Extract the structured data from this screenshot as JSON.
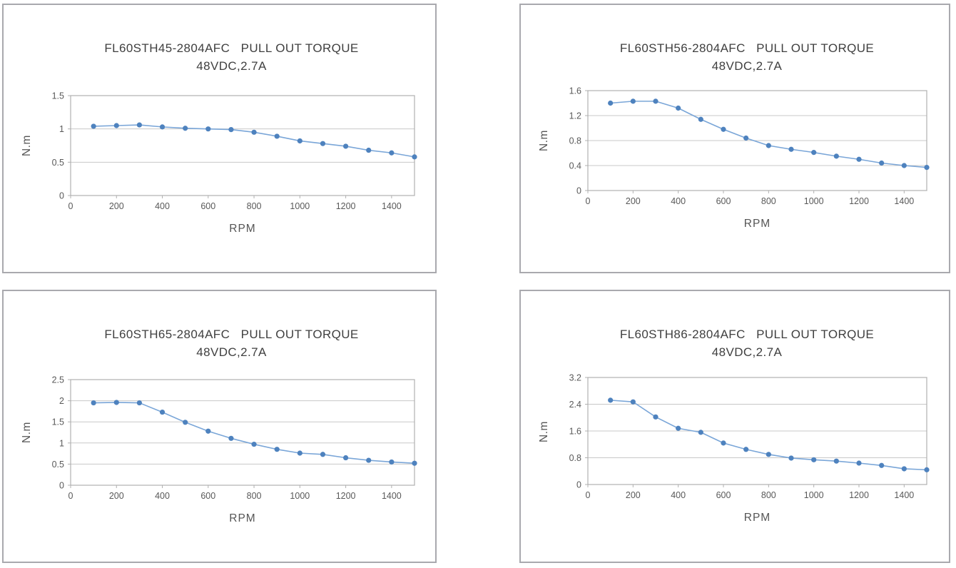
{
  "colors": {
    "line": "#7aa6d8",
    "marker": "#4e82be",
    "grid": "#c8c8c8",
    "axis": "#b0b0b0",
    "panel_border": "#a9a9ae",
    "title_text": "#3f3f3f",
    "tick_text": "#595959"
  },
  "chart_data": [
    {
      "type": "line",
      "title": "FL60STH45-2804AFC   PULL OUT TORQUE",
      "subtitle": "48VDC,2.7A",
      "xlabel": "RPM",
      "ylabel": "N.m",
      "legend": "none",
      "grid": true,
      "x": [
        100,
        200,
        300,
        400,
        500,
        600,
        700,
        800,
        900,
        1000,
        1100,
        1200,
        1300,
        1400,
        1500
      ],
      "values": [
        1.04,
        1.05,
        1.06,
        1.03,
        1.01,
        1.0,
        0.99,
        0.95,
        0.89,
        0.82,
        0.78,
        0.74,
        0.68,
        0.64,
        0.58
      ],
      "xlim": [
        0,
        1500
      ],
      "ylim": [
        0,
        1.5
      ],
      "x_ticks": [
        0,
        200,
        400,
        600,
        800,
        1000,
        1200,
        1400
      ],
      "x_tick_labels": [
        "0",
        "200",
        "400",
        "600",
        "800",
        "1000",
        "1200",
        "1400"
      ],
      "y_ticks": [
        0,
        0.5,
        1,
        1.5
      ],
      "y_tick_labels": [
        "0",
        "0.5",
        "1",
        "1.5"
      ]
    },
    {
      "type": "line",
      "title": "FL60STH56-2804AFC   PULL OUT TORQUE",
      "subtitle": "48VDC,2.7A",
      "xlabel": "RPM",
      "ylabel": "N.m",
      "legend": "none",
      "grid": true,
      "x": [
        100,
        200,
        300,
        400,
        500,
        600,
        700,
        800,
        900,
        1000,
        1100,
        1200,
        1300,
        1400,
        1500
      ],
      "values": [
        1.4,
        1.43,
        1.43,
        1.32,
        1.14,
        0.98,
        0.84,
        0.72,
        0.66,
        0.61,
        0.55,
        0.5,
        0.44,
        0.4,
        0.37
      ],
      "xlim": [
        0,
        1500
      ],
      "ylim": [
        0,
        1.6
      ],
      "x_ticks": [
        0,
        200,
        400,
        600,
        800,
        1000,
        1200,
        1400
      ],
      "x_tick_labels": [
        "0",
        "200",
        "400",
        "600",
        "800",
        "1000",
        "1200",
        "1400"
      ],
      "y_ticks": [
        0,
        0.4,
        0.8,
        1.2,
        1.6
      ],
      "y_tick_labels": [
        "0",
        "0.4",
        "0.8",
        "1.2",
        "1.6"
      ]
    },
    {
      "type": "line",
      "title": "FL60STH65-2804AFC   PULL OUT TORQUE",
      "subtitle": "48VDC,2.7A",
      "xlabel": "RPM",
      "ylabel": "N.m",
      "legend": "none",
      "grid": true,
      "x": [
        100,
        200,
        300,
        400,
        500,
        600,
        700,
        800,
        900,
        1000,
        1100,
        1200,
        1300,
        1400,
        1500
      ],
      "values": [
        1.95,
        1.96,
        1.95,
        1.73,
        1.49,
        1.28,
        1.11,
        0.97,
        0.85,
        0.76,
        0.73,
        0.65,
        0.59,
        0.55,
        0.52
      ],
      "xlim": [
        0,
        1500
      ],
      "ylim": [
        0,
        2.5
      ],
      "x_ticks": [
        0,
        200,
        400,
        600,
        800,
        1000,
        1200,
        1400
      ],
      "x_tick_labels": [
        "0",
        "200",
        "400",
        "600",
        "800",
        "1000",
        "1200",
        "1400"
      ],
      "y_ticks": [
        0,
        0.5,
        1,
        1.5,
        2,
        2.5
      ],
      "y_tick_labels": [
        "0",
        "0.5",
        "1",
        "1.5",
        "2",
        "2.5"
      ]
    },
    {
      "type": "line",
      "title": "FL60STH86-2804AFC   PULL OUT TORQUE",
      "subtitle": "48VDC,2.7A",
      "xlabel": "RPM",
      "ylabel": "N.m",
      "legend": "none",
      "grid": true,
      "x": [
        100,
        200,
        300,
        400,
        500,
        600,
        700,
        800,
        900,
        1000,
        1100,
        1200,
        1300,
        1400,
        1500
      ],
      "values": [
        2.52,
        2.47,
        2.02,
        1.68,
        1.56,
        1.24,
        1.05,
        0.9,
        0.79,
        0.74,
        0.7,
        0.64,
        0.57,
        0.47,
        0.44
      ],
      "xlim": [
        0,
        1500
      ],
      "ylim": [
        0,
        3.2
      ],
      "x_ticks": [
        0,
        200,
        400,
        600,
        800,
        1000,
        1200,
        1400
      ],
      "x_tick_labels": [
        "0",
        "200",
        "400",
        "600",
        "800",
        "1000",
        "1200",
        "1400"
      ],
      "y_ticks": [
        0,
        0.8,
        1.6,
        2.4,
        3.2
      ],
      "y_tick_labels": [
        "0",
        "0.8",
        "1.6",
        "2.4",
        "3.2"
      ]
    }
  ]
}
